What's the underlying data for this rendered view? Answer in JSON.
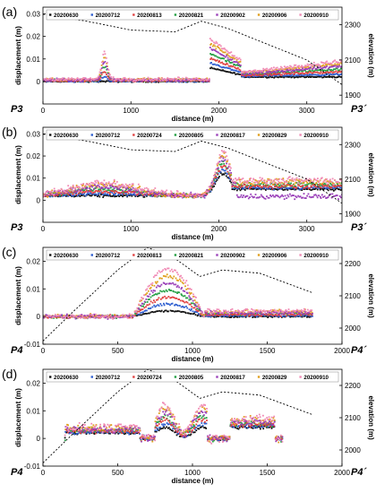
{
  "chart_data": [
    {
      "type": "scatter",
      "panel_label": "(a)",
      "xlabel": "distance (m)",
      "ylabel": "displacement (m)",
      "y2label": "elevation (m)",
      "xlim": [
        0,
        3400
      ],
      "ylim": [
        -0.01,
        0.033
      ],
      "y2lim": [
        1850,
        2400
      ],
      "xticks": [
        0,
        1000,
        2000,
        3000
      ],
      "yticks": [
        0,
        0.01,
        0.02,
        0.03
      ],
      "ytick_labels": [
        "0",
        "0.01",
        "0.02",
        "0.03"
      ],
      "y2ticks": [
        1900,
        2100,
        2300
      ],
      "profile_start": "P3",
      "profile_end": "P3´",
      "legend": [
        "20200630",
        "20200712",
        "20200813",
        "20200821",
        "20200902",
        "20200906",
        "20200910"
      ],
      "colors": [
        "#111111",
        "#2f5fd0",
        "#e04040",
        "#25a045",
        "#9a3fb8",
        "#e0a020",
        "#f08ab5"
      ],
      "x": [
        0,
        400,
        600,
        750,
        1000,
        1200,
        1400,
        1600,
        1800,
        1880,
        1950,
        2300,
        2700,
        3000,
        3400
      ],
      "series_end_values": [
        0.002,
        0.004,
        0.006,
        0.007,
        0.004,
        0.0065,
        0.009
      ],
      "elevation": [
        [
          0,
          2360
        ],
        [
          500,
          2320
        ],
        [
          1000,
          2270
        ],
        [
          1500,
          2260
        ],
        [
          1800,
          2320
        ],
        [
          2100,
          2280
        ],
        [
          2500,
          2200
        ],
        [
          3000,
          2100
        ],
        [
          3400,
          1960
        ]
      ]
    },
    {
      "type": "scatter",
      "panel_label": "(b)",
      "xlabel": "distance (m)",
      "ylabel": "displacement (m)",
      "y2label": "elevation (m)",
      "xlim": [
        0,
        3400
      ],
      "ylim": [
        -0.01,
        0.033
      ],
      "y2lim": [
        1850,
        2400
      ],
      "xticks": [
        0,
        1000,
        2000,
        3000
      ],
      "yticks": [
        0,
        0.01,
        0.02,
        0.03
      ],
      "ytick_labels": [
        "0",
        "0.01",
        "0.02",
        "0.03"
      ],
      "y2ticks": [
        1900,
        2100,
        2300
      ],
      "profile_start": "P3",
      "profile_end": "P3´",
      "legend": [
        "20200630",
        "20200712",
        "20200724",
        "20200805",
        "20200817",
        "20200829",
        "20200910"
      ],
      "colors": [
        "#111111",
        "#2f5fd0",
        "#e04040",
        "#25a045",
        "#9a3fb8",
        "#e0a020",
        "#f08ab5"
      ],
      "elevation": [
        [
          0,
          2360
        ],
        [
          500,
          2320
        ],
        [
          1000,
          2270
        ],
        [
          1500,
          2260
        ],
        [
          1800,
          2320
        ],
        [
          2100,
          2280
        ],
        [
          2500,
          2200
        ],
        [
          3000,
          2100
        ],
        [
          3400,
          1960
        ]
      ]
    },
    {
      "type": "scatter",
      "panel_label": "(c)",
      "xlabel": "distance (m)",
      "ylabel": "displacement (m)",
      "y2label": "elevation (m)",
      "xlim": [
        0,
        2000
      ],
      "ylim": [
        -0.01,
        0.025
      ],
      "y2lim": [
        1950,
        2250
      ],
      "xticks": [
        0,
        500,
        1000,
        1500,
        2000
      ],
      "yticks": [
        -0.01,
        0,
        0.01,
        0.02
      ],
      "ytick_labels": [
        "-0.01",
        "0",
        "0.01",
        "0.02"
      ],
      "y2ticks": [
        2000,
        2100,
        2200
      ],
      "profile_start": "P4",
      "profile_end": "P4´",
      "legend": [
        "20200630",
        "20200712",
        "20200813",
        "20200821",
        "20200902",
        "20200906",
        "20200910"
      ],
      "colors": [
        "#111111",
        "#2f5fd0",
        "#e04040",
        "#25a045",
        "#9a3fb8",
        "#e0a020",
        "#f08ab5"
      ],
      "elevation": [
        [
          0,
          1960
        ],
        [
          200,
          2050
        ],
        [
          500,
          2180
        ],
        [
          700,
          2250
        ],
        [
          900,
          2210
        ],
        [
          1050,
          2160
        ],
        [
          1200,
          2180
        ],
        [
          1450,
          2170
        ],
        [
          1800,
          2110
        ]
      ]
    },
    {
      "type": "scatter",
      "panel_label": "(d)",
      "xlabel": "distance (m)",
      "ylabel": "displacement (m)",
      "y2label": "elevation (m)",
      "xlim": [
        0,
        2000
      ],
      "ylim": [
        -0.01,
        0.025
      ],
      "y2lim": [
        1950,
        2250
      ],
      "xticks": [
        0,
        500,
        1000,
        1500,
        2000
      ],
      "yticks": [
        -0.01,
        0,
        0.01,
        0.02
      ],
      "ytick_labels": [
        "-0.01",
        "0",
        "0.01",
        "0.02"
      ],
      "y2ticks": [
        2000,
        2100,
        2200
      ],
      "profile_start": "P4",
      "profile_end": "P4´",
      "legend": [
        "20200630",
        "20200712",
        "20200724",
        "20200805",
        "20200817",
        "20200829",
        "20200910"
      ],
      "colors": [
        "#111111",
        "#2f5fd0",
        "#e04040",
        "#25a045",
        "#9a3fb8",
        "#e0a020",
        "#f08ab5"
      ],
      "elevation": [
        [
          0,
          1960
        ],
        [
          200,
          2050
        ],
        [
          500,
          2180
        ],
        [
          700,
          2250
        ],
        [
          900,
          2210
        ],
        [
          1050,
          2160
        ],
        [
          1200,
          2180
        ],
        [
          1450,
          2170
        ],
        [
          1800,
          2110
        ]
      ]
    }
  ]
}
